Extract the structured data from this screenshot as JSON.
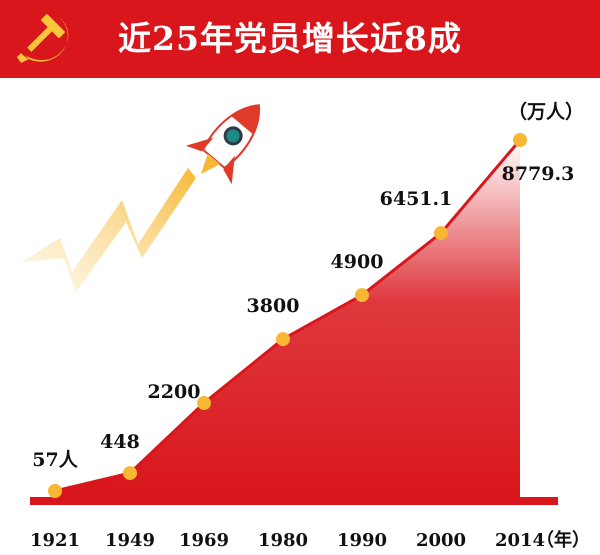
{
  "header": {
    "title": "近25年党员增长近8成",
    "emblem_icon": "hammer-sickle-icon",
    "banner_color": "#d9161c",
    "emblem_color": "#f7c63a"
  },
  "chart_data": {
    "type": "area",
    "title": "近25年党员增长近8成",
    "categories": [
      "1921",
      "1949",
      "1969",
      "1980",
      "1990",
      "2000",
      "2014"
    ],
    "series": [
      {
        "values": [
          0.0057,
          448,
          2200,
          3800,
          4900,
          6451.1,
          8779.3
        ],
        "data_labels": [
          "57人",
          "448",
          "2200",
          "3800",
          "4900",
          "6451.1",
          "8779.3"
        ]
      }
    ],
    "unit_label": "（万人）",
    "xlabel_suffix": "（年）",
    "line_color": "#d9161c",
    "marker_color": "#f7b733",
    "fill_color": "#d9161c",
    "grid": false,
    "decoration_icon": "rocket-icon"
  }
}
